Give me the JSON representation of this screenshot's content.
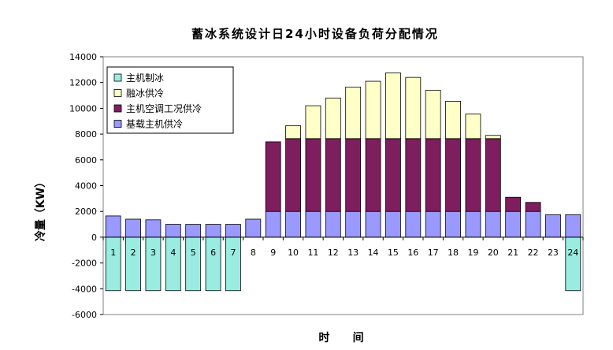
{
  "chart_data": {
    "type": "bar",
    "stacked": true,
    "title": "蓄冰系统设计日24小时设备负荷分配情况",
    "xlabel": "时      间",
    "ylabel": "冷量（KW）",
    "ylim": [
      -6000,
      14000
    ],
    "yticks": [
      14000,
      12000,
      10000,
      8000,
      6000,
      4000,
      2000,
      0,
      -2000,
      -4000,
      -6000
    ],
    "categories": [
      "1",
      "2",
      "3",
      "4",
      "5",
      "6",
      "7",
      "8",
      "9",
      "10",
      "11",
      "12",
      "13",
      "14",
      "15",
      "16",
      "17",
      "18",
      "19",
      "20",
      "21",
      "22",
      "23",
      "24"
    ],
    "grid": false,
    "legend_position": "top-left",
    "series": [
      {
        "name": "主机制冰",
        "color": "#99ECDF",
        "values": [
          -4150,
          -4150,
          -4150,
          -4150,
          -4150,
          -4150,
          -4150,
          0,
          0,
          0,
          0,
          0,
          0,
          0,
          0,
          0,
          0,
          0,
          0,
          0,
          0,
          0,
          0,
          -4150
        ]
      },
      {
        "name": "融冰供冷",
        "color": "#FFFFC8",
        "values": [
          0,
          0,
          0,
          0,
          0,
          0,
          0,
          0,
          0,
          1000,
          2550,
          3150,
          4000,
          4450,
          5100,
          4750,
          3750,
          2900,
          1900,
          250,
          0,
          0,
          0,
          0
        ]
      },
      {
        "name": "主机空调工况供冷",
        "color": "#7E1E5E",
        "values": [
          0,
          0,
          0,
          0,
          0,
          0,
          0,
          0,
          5400,
          5650,
          5650,
          5650,
          5650,
          5650,
          5650,
          5650,
          5650,
          5650,
          5650,
          5650,
          1100,
          700,
          0,
          0
        ]
      },
      {
        "name": "基载主机供冷",
        "color": "#9999FF",
        "values": [
          1650,
          1400,
          1350,
          1000,
          1000,
          1000,
          1000,
          1400,
          2000,
          2000,
          2000,
          2000,
          2000,
          2000,
          2000,
          2000,
          2000,
          2000,
          2000,
          2000,
          2000,
          2000,
          1750,
          1750
        ]
      }
    ]
  }
}
